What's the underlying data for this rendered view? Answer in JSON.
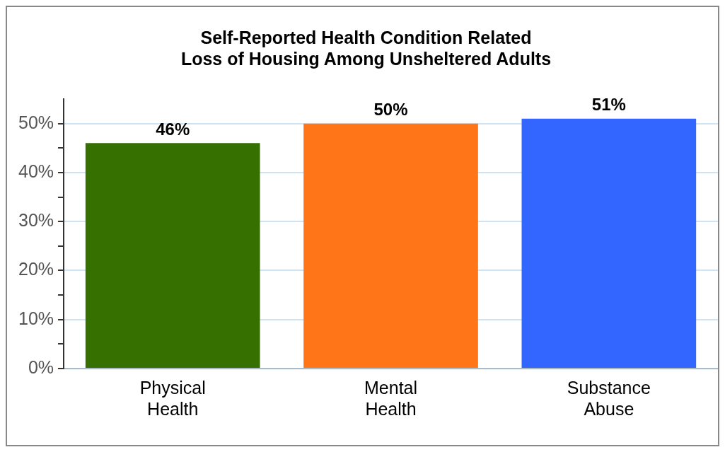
{
  "chart_data": {
    "type": "bar",
    "title": "Self-Reported Health Condition Related Loss of Housing Among Unsheltered Adults",
    "categories": [
      "Physical Health",
      "Mental Health",
      "Substance Abuse"
    ],
    "values": [
      46,
      50,
      51
    ],
    "colors": [
      "#367000",
      "#ff7518",
      "#3366ff"
    ],
    "value_labels": [
      "46%",
      "50%",
      "51%"
    ],
    "ylim": [
      0,
      55
    ],
    "yticks": [
      {
        "value": 0,
        "label": "0%"
      },
      {
        "value": 5,
        "label": null
      },
      {
        "value": 10,
        "label": "10%"
      },
      {
        "value": 15,
        "label": null
      },
      {
        "value": 20,
        "label": "20%"
      },
      {
        "value": 25,
        "label": null
      },
      {
        "value": 30,
        "label": "30%"
      },
      {
        "value": 35,
        "label": null
      },
      {
        "value": 40,
        "label": "40%"
      },
      {
        "value": 45,
        "label": null
      },
      {
        "value": 50,
        "label": "50%"
      }
    ],
    "grid": "y",
    "legend": false
  }
}
